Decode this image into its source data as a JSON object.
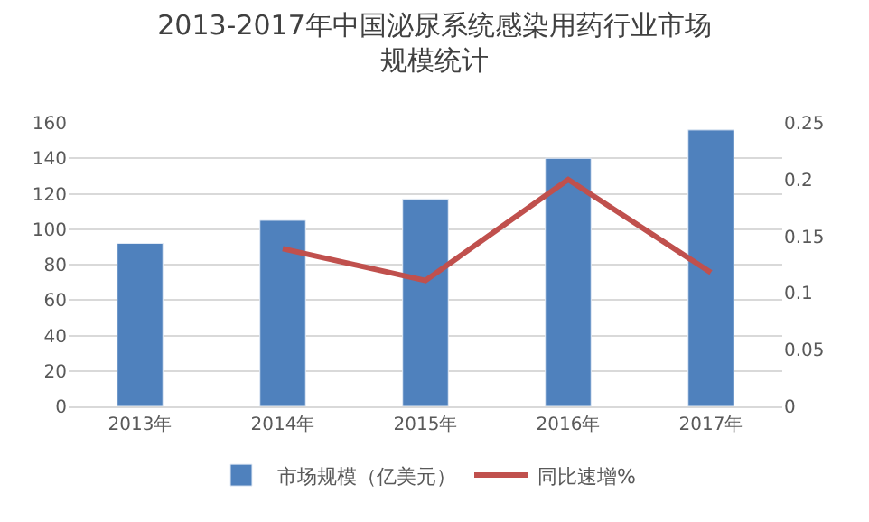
{
  "chart_data": {
    "type": "bar",
    "title": "2013-2017年中国泌尿系统感染用药行业市场规模统计",
    "categories": [
      "2013年",
      "2014年",
      "2015年",
      "2016年",
      "2017年"
    ],
    "series": [
      {
        "name": "市场规模（亿美元）",
        "color": "#4f81bd",
        "values": [
          92,
          105,
          117,
          140,
          156
        ]
      },
      {
        "name": "同比速增%",
        "color": "#c0504d",
        "type": "line",
        "axis": "y2",
        "values": [
          null,
          0.139,
          0.111,
          0.2,
          0.118
        ]
      }
    ],
    "ylim": [
      0,
      160
    ],
    "yticks": [
      0,
      20,
      40,
      60,
      80,
      100,
      120,
      140,
      160
    ],
    "y2lim": [
      0,
      0.25
    ],
    "y2ticks": [
      0,
      0.05,
      0.1,
      0.15,
      0.2,
      0.25
    ],
    "grid": "y",
    "legend": "bottom",
    "marker": "none"
  }
}
